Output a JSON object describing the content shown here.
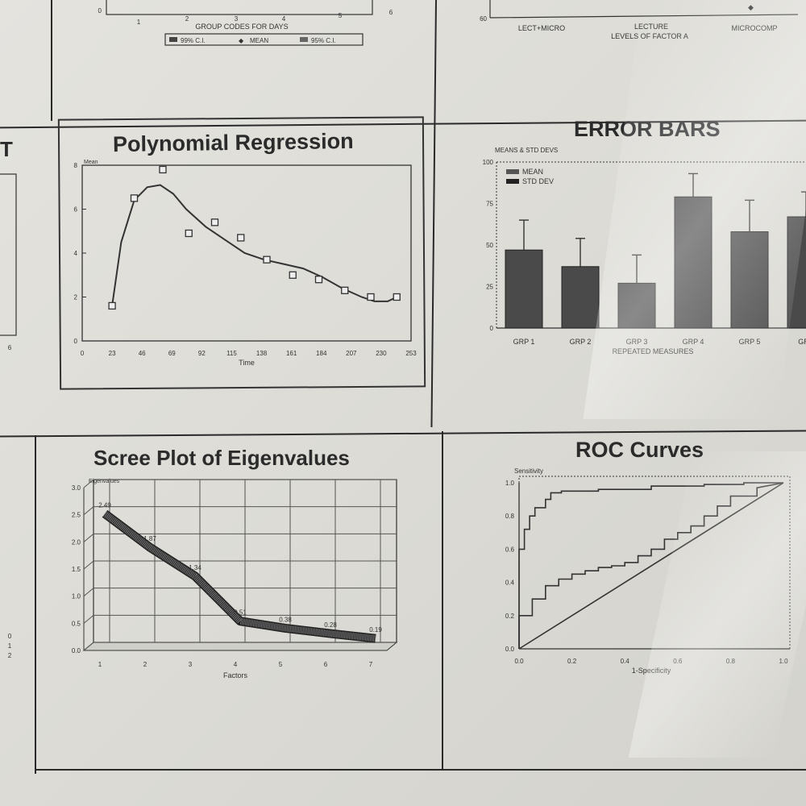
{
  "top_left_fragment": {
    "xticks": [
      "1",
      "2",
      "3",
      "4",
      "5",
      "6"
    ],
    "xlabel": "GROUP CODES FOR DAYS",
    "legend": [
      "99% C.I.",
      "MEAN",
      "95% C.I."
    ],
    "zero_label": "0"
  },
  "top_right_fragment": {
    "y_label": "60",
    "categories": [
      "LECT+MICRO",
      "LECTURE",
      "MICROCOMP"
    ],
    "xlabel": "LEVELS OF FACTOR A"
  },
  "left_edge_fragment": {
    "letter": "T",
    "tick": "6",
    "bottom_ticks": [
      "0",
      "1",
      "2"
    ]
  },
  "polynomial": {
    "title": "Polynomial Regression",
    "chart_data": {
      "type": "scatter",
      "title": "Polynomial Regression",
      "xlabel": "Time",
      "ylabel": "Mean",
      "xlim": [
        0,
        253
      ],
      "ylim": [
        0,
        8
      ],
      "xticks": [
        0,
        23,
        46,
        69,
        92,
        115,
        138,
        161,
        184,
        207,
        230,
        253
      ],
      "yticks": [
        0,
        2,
        4,
        6,
        8
      ],
      "grid": false,
      "series": [
        {
          "type": "scatter",
          "x": [
            23,
            40,
            62,
            82,
            102,
            122,
            142,
            162,
            182,
            202,
            222,
            242
          ],
          "y": [
            1.6,
            6.5,
            7.8,
            4.9,
            5.4,
            4.7,
            3.7,
            3.0,
            2.8,
            2.3,
            2.0,
            2.0
          ]
        },
        {
          "type": "line",
          "x": [
            23,
            30,
            40,
            50,
            60,
            70,
            80,
            95,
            110,
            125,
            140,
            155,
            170,
            185,
            200,
            215,
            225,
            235,
            242
          ],
          "y": [
            1.6,
            4.5,
            6.4,
            7.0,
            7.1,
            6.7,
            6.0,
            5.2,
            4.6,
            4.0,
            3.7,
            3.5,
            3.3,
            2.9,
            2.4,
            2.0,
            1.8,
            1.8,
            2.0
          ]
        }
      ]
    }
  },
  "error_bars": {
    "title": "ERROR BARS",
    "chart_data": {
      "type": "bar",
      "title": "ERROR BARS",
      "subtitle": "MEANS & STD DEVS",
      "xlabel": "REPEATED MEASURES",
      "ylabel": "",
      "categories": [
        "GRP 1",
        "GRP 2",
        "GRP 3",
        "GRP 4",
        "GRP 5",
        "GRP"
      ],
      "ylim": [
        0,
        100
      ],
      "yticks": [
        0,
        25,
        50,
        75,
        100
      ],
      "legend": [
        "MEAN",
        "STD DEV"
      ],
      "legend_position": "top-left",
      "series": [
        {
          "name": "MEAN",
          "values": [
            47,
            37,
            27,
            79,
            58,
            67
          ]
        },
        {
          "name": "STD DEV",
          "values": [
            18,
            17,
            17,
            14,
            19,
            15
          ]
        }
      ]
    }
  },
  "scree": {
    "title": "Scree Plot of Eigenvalues",
    "chart_data": {
      "type": "line",
      "title": "Scree Plot of Eigenvalues",
      "xlabel": "Factors",
      "ylabel": "Eigenvalues",
      "x": [
        1,
        2,
        3,
        4,
        5,
        6,
        7
      ],
      "xlim": [
        1,
        7
      ],
      "ylim": [
        0,
        3.0
      ],
      "yticks": [
        "0.0",
        "0.5",
        "1.0",
        "1.5",
        "2.0",
        "2.5",
        "3.0"
      ],
      "grid": true,
      "series": [
        {
          "values": [
            2.49,
            1.87,
            1.34,
            0.51,
            0.38,
            0.28,
            0.19
          ],
          "labels": [
            "2.49",
            "1.87",
            "1.34",
            "0.51",
            "0.38",
            "0.28",
            "0.19"
          ]
        }
      ]
    }
  },
  "roc": {
    "title": "ROC Curves",
    "chart_data": {
      "type": "line",
      "title": "ROC Curves",
      "xlabel": "1-Specificity",
      "ylabel": "Sensitivity",
      "xlim": [
        0,
        1
      ],
      "ylim": [
        0,
        1
      ],
      "xticks": [
        "0.0",
        "0.2",
        "0.4",
        "0.6",
        "0.8",
        "1.0"
      ],
      "yticks": [
        "0.0",
        "0.2",
        "0.4",
        "0.6",
        "0.8",
        "1.0"
      ],
      "grid": false,
      "series": [
        {
          "x": [
            0,
            0,
            0.02,
            0.02,
            0.04,
            0.04,
            0.06,
            0.06,
            0.1,
            0.1,
            0.12,
            0.12,
            0.16,
            0.16,
            0.3,
            0.3,
            0.5,
            0.5,
            0.7,
            0.7,
            0.85,
            0.85,
            1.0
          ],
          "y": [
            0,
            0.6,
            0.6,
            0.72,
            0.72,
            0.8,
            0.8,
            0.85,
            0.85,
            0.9,
            0.9,
            0.94,
            0.94,
            0.95,
            0.95,
            0.96,
            0.96,
            0.98,
            0.98,
            0.99,
            0.99,
            1.0,
            1.0
          ]
        },
        {
          "x": [
            0,
            0,
            0.05,
            0.05,
            0.1,
            0.1,
            0.15,
            0.15,
            0.2,
            0.2,
            0.25,
            0.25,
            0.3,
            0.3,
            0.35,
            0.35,
            0.4,
            0.4,
            0.45,
            0.45,
            0.5,
            0.5,
            0.55,
            0.55,
            0.6,
            0.6,
            0.65,
            0.65,
            0.7,
            0.7,
            0.75,
            0.75,
            0.8,
            0.8,
            0.9,
            0.9,
            1.0
          ],
          "y": [
            0,
            0.2,
            0.2,
            0.3,
            0.3,
            0.38,
            0.38,
            0.42,
            0.42,
            0.45,
            0.45,
            0.47,
            0.47,
            0.49,
            0.49,
            0.5,
            0.5,
            0.52,
            0.52,
            0.56,
            0.56,
            0.6,
            0.6,
            0.66,
            0.66,
            0.7,
            0.7,
            0.74,
            0.74,
            0.8,
            0.8,
            0.86,
            0.86,
            0.92,
            0.92,
            0.97,
            1.0
          ]
        },
        {
          "x": [
            0,
            1
          ],
          "y": [
            0,
            1
          ]
        }
      ]
    }
  }
}
